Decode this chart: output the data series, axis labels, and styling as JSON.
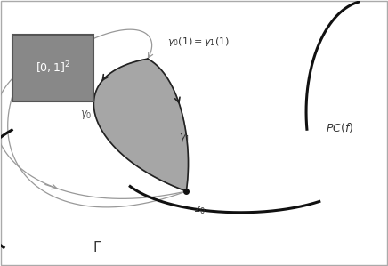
{
  "fig_width": 4.36,
  "fig_height": 2.99,
  "dpi": 100,
  "bg_color": "#ffffff",
  "square_facecolor": "#888888",
  "square_edgecolor": "#555555",
  "square_label": "[0, 1]$^2$",
  "gray_curve_color": "#999999",
  "thick_curve_color": "#111111",
  "shaded_color": "#888888",
  "shaded_alpha": 0.75
}
